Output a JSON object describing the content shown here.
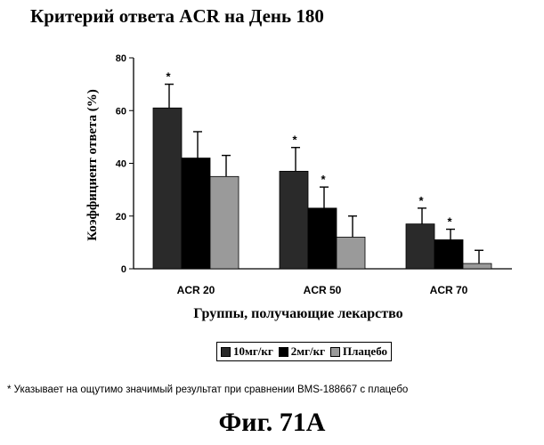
{
  "title": "Критерий ответа ACR на День 180",
  "footnote": "* Указывает на ощутимо значимый результат при сравнении BMS-188667 с плацебо",
  "figure_label": "Фиг. 71А",
  "chart_data": {
    "type": "bar",
    "title": "Критерий ответа ACR на День 180",
    "xlabel": "Группы, получающие лекарство",
    "ylabel": "Коэффициент ответа (%)",
    "ylim": [
      0,
      80
    ],
    "yticks": [
      "0",
      "20",
      "40",
      "60",
      "80"
    ],
    "categories": [
      "ACR 20",
      "ACR 50",
      "ACR 70"
    ],
    "series": [
      {
        "name": "10мг/кг",
        "values": [
          61,
          37,
          17
        ],
        "errors": [
          9,
          9,
          6
        ],
        "significant": [
          true,
          true,
          true
        ],
        "color": "#2a2a2a"
      },
      {
        "name": "2мг/кг",
        "values": [
          42,
          23,
          11
        ],
        "errors": [
          10,
          8,
          4
        ],
        "significant": [
          false,
          true,
          true
        ],
        "color": "#000000"
      },
      {
        "name": "Плацебо",
        "values": [
          35,
          12,
          2
        ],
        "errors": [
          8,
          8,
          5
        ],
        "significant": [
          false,
          false,
          false
        ],
        "color": "#9a9a9a"
      }
    ],
    "significance_marker": "*",
    "grid": false,
    "legend_position": "bottom"
  }
}
